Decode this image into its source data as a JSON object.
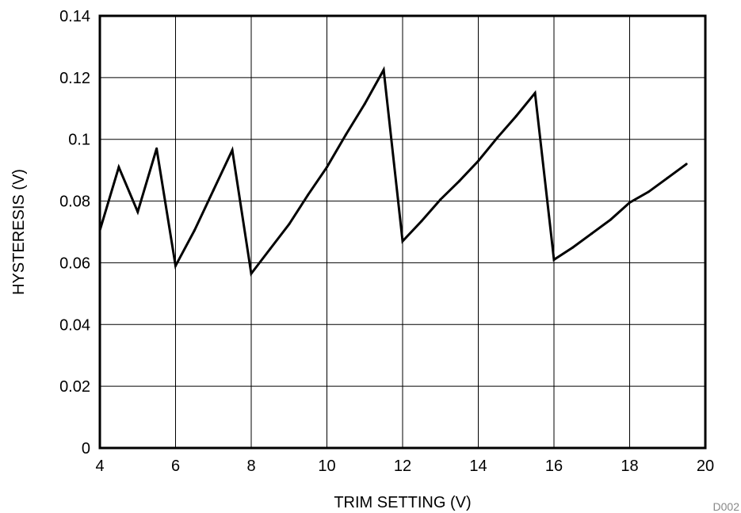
{
  "chart_data": {
    "type": "line",
    "title": "",
    "xlabel": "TRIM SETTING (V)",
    "ylabel": "HYSTERESIS (V)",
    "xlim": [
      4,
      20
    ],
    "ylim": [
      0,
      0.14
    ],
    "xticks": [
      "4",
      "6",
      "8",
      "10",
      "12",
      "14",
      "16",
      "18",
      "20"
    ],
    "yticks": [
      "0",
      "0.02",
      "0.04",
      "0.06",
      "0.08",
      "0.1",
      "0.12",
      "0.14"
    ],
    "grid": true,
    "figure_id": "D002",
    "series": [
      {
        "x": [
          4,
          4.5,
          5,
          5.5,
          6,
          6.5,
          7,
          7.5,
          8,
          8.5,
          9,
          9.5,
          10,
          10.5,
          11,
          11.5,
          12,
          12.5,
          13,
          13.5,
          14,
          14.5,
          15,
          15.5,
          16,
          16.5,
          17,
          17.5,
          18,
          18.5,
          19,
          19.5
        ],
        "y": [
          0.0705,
          0.091,
          0.0765,
          0.097,
          0.059,
          0.0705,
          0.0835,
          0.0965,
          0.0565,
          0.0645,
          0.0725,
          0.082,
          0.091,
          0.1015,
          0.1115,
          0.1225,
          0.067,
          0.0735,
          0.0805,
          0.0865,
          0.093,
          0.1005,
          0.1075,
          0.115,
          0.061,
          0.065,
          0.0695,
          0.074,
          0.0795,
          0.083,
          0.0875,
          0.092
        ]
      }
    ]
  }
}
